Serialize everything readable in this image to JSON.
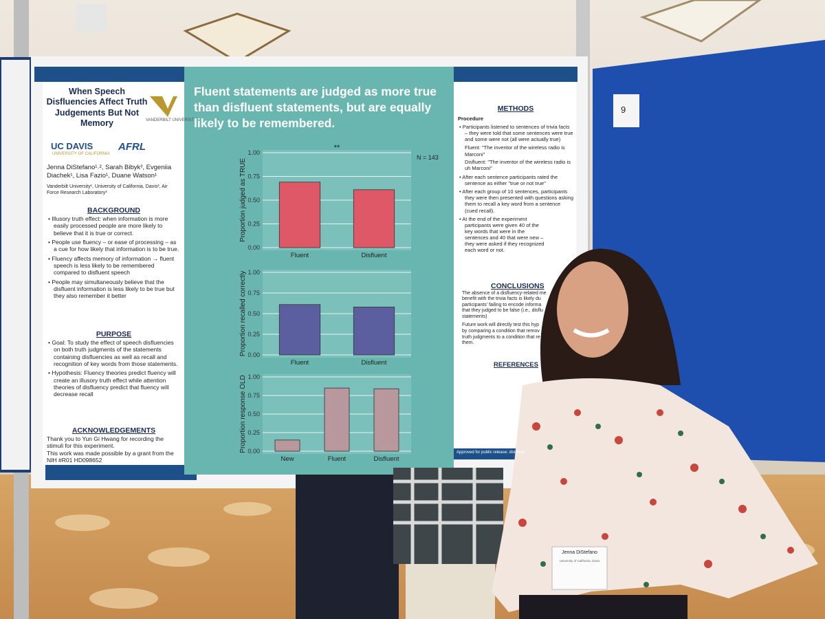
{
  "poster": {
    "left": {
      "title": "When Speech Disfluencies Affect Truth Judgements But Not Memory",
      "logos": [
        "VANDERBILT UNIVERSITY",
        "UC DAVIS",
        "UNIVERSITY OF CALIFORNIA",
        "AFRL"
      ],
      "authors": "Jenna DiStefano¹˒², Sarah Bibyk³, Evgeniia Diachek¹, Lisa Fazio¹, Duane Watson¹",
      "affiliations": "Vanderbilt University¹, University of California, Davis², Air Force Research Laboratory³",
      "background_heading": "BACKGROUND",
      "background": [
        "Illusory truth effect: when information is more easily processed people are more likely to believe that it is true or correct.",
        "People use fluency – or ease of processing – as a cue for how likely that information is to be true.",
        "Fluency affects memory of information → fluent speech is less likely to be remembered compared to disfluent speech",
        "People may simultaneously believe that the disfluent information is less likely to be true but they also remember it better"
      ],
      "purpose_heading": "PURPOSE",
      "purpose": [
        "Goal: To study the effect of speech disfluencies on both truth judgments of the statements containing disfluencies as well as recall and recognition of key words from those statements.",
        "Hypothesis: Fluency theories predict fluency will create an illusory truth effect while attention theories of disfluency predict that fluency will decrease recall"
      ],
      "ack_heading": "ACKNOWLEDGEMENTS",
      "ack": [
        "Thank you to Yun Gi Hwang for recording the stimuli for this experiment.",
        "This work was made possible by a grant from the NIH #R01 HD098652"
      ]
    },
    "headline": "Fluent statements are judged as more true than disfluent statements, but are equally likely to be remembered.",
    "n_label": "N = 143",
    "charts": [
      {
        "ylabel": "Proportion judged as TRUE",
        "categories": [
          "Fluent",
          "Disfluent"
        ],
        "values": [
          0.69,
          0.61
        ],
        "color": "#de5868",
        "annotation": "**",
        "ylim": [
          0,
          1
        ],
        "yticks": [
          {
            "value": 0,
            "label": "0.00"
          },
          {
            "value": 0.25,
            "label": "0.25"
          },
          {
            "value": 0.5,
            "label": "0.50"
          },
          {
            "value": 0.75,
            "label": "0.75"
          },
          {
            "value": 1,
            "label": "1.00"
          }
        ]
      },
      {
        "ylabel": "Proportion recalled correctly",
        "categories": [
          "Fluent",
          "Disfluent"
        ],
        "values": [
          0.61,
          0.58
        ],
        "color": "#5b5f9f",
        "ylim": [
          0,
          1
        ],
        "yticks": [
          {
            "value": 0,
            "label": "0.00"
          },
          {
            "value": 0.25,
            "label": "0.25"
          },
          {
            "value": 0.5,
            "label": "0.50"
          },
          {
            "value": 0.75,
            "label": "0.75"
          },
          {
            "value": 1,
            "label": "1.00"
          }
        ]
      },
      {
        "ylabel": "Proportion response OLD",
        "categories": [
          "New",
          "Fluent",
          "Disfluent"
        ],
        "values": [
          0.15,
          0.85,
          0.84
        ],
        "color": "#b8979d",
        "ylim": [
          0,
          1
        ],
        "yticks": [
          {
            "value": 0,
            "label": "0.00"
          },
          {
            "value": 0.25,
            "label": "0.25"
          },
          {
            "value": 0.5,
            "label": "0.50"
          },
          {
            "value": 0.75,
            "label": "0.75"
          },
          {
            "value": 1,
            "label": "1.00"
          }
        ]
      }
    ],
    "right": {
      "methods_heading": "METHODS",
      "procedure": "Procedure",
      "methods": [
        "Participants listened to sentences of trivia facts – they were told that some sentences were true and some were not (all were actually true)",
        "Fluent: \"The inventor of the wireless radio is Marconi\"",
        "Disfluent: \"The inventor of the wireless radio is uh Marconi\"",
        "After each sentence participants rated the sentence as either \"true or not true\"",
        "After each group of 10 sentences, participants they were then presented with questions asking them to recall a key word from a sentence (cued recall).",
        "At the end of the experiment participants were given 40 of the key words that were in the sentences and 40 that were new – they were asked if they recognized each word or not."
      ],
      "conclusions_heading": "CONCLUSIONS",
      "conclusions": [
        "The absence of a disfluency-related me",
        "benefit with the trivia facts is likely du",
        "participants' failing to encode informa",
        "that they judged to be false (i.e., disflu",
        "statements)",
        "Future work will directly test this hyp",
        "by comparing a condition that remov",
        "truth judgments to a condition that re",
        "them."
      ],
      "references_heading": "REFERENCES",
      "footer": "Approved for public release; distributi"
    }
  },
  "board_number": "9",
  "name_tag": {
    "name": "Jenna DiStefano",
    "affiliation": "University of California, Davis"
  }
}
